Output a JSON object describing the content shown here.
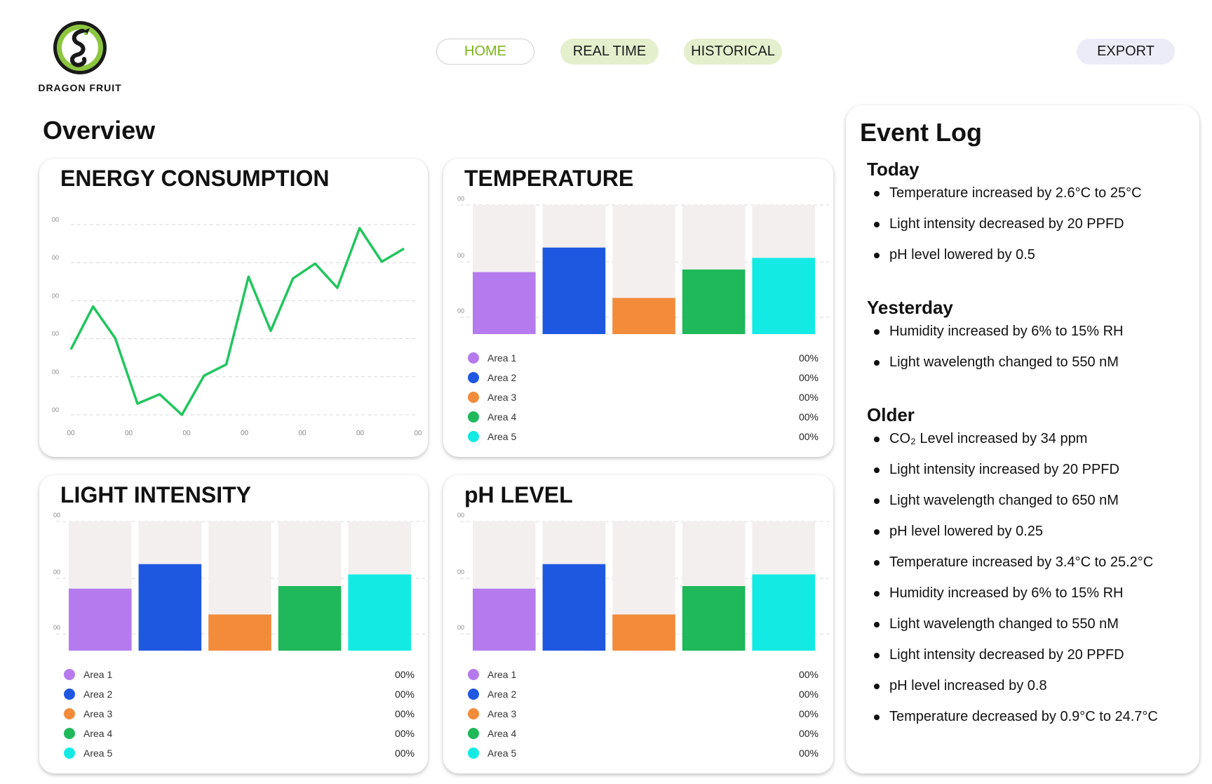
{
  "app": {
    "logo_text": "DRAGON FRUIT"
  },
  "nav": {
    "home": "HOME",
    "real_time": "REAL TIME",
    "historical": "HISTORICAL",
    "export": "EXPORT"
  },
  "overview": {
    "title": "Overview"
  },
  "colors": {
    "accent_green": "#7cb518",
    "line_green": "#22c55e",
    "area1": "#b57bee",
    "area2": "#1f58e0",
    "area3": "#f28b3a",
    "area4": "#1fb85a",
    "area5": "#13eae3",
    "bar_bg": "#f3efef"
  },
  "cards": {
    "energy": {
      "title": "ENERGY CONSUMPTION"
    },
    "temperature": {
      "title": "TEMPERATURE",
      "legend": [
        {
          "label": "Area 1",
          "value": "00%"
        },
        {
          "label": "Area 2",
          "value": "00%"
        },
        {
          "label": "Area 3",
          "value": "00%"
        },
        {
          "label": "Area 4",
          "value": "00%"
        },
        {
          "label": "Area 5",
          "value": "00%"
        }
      ]
    },
    "light": {
      "title": "LIGHT INTENSITY",
      "legend": [
        {
          "label": "Area 1",
          "value": "00%"
        },
        {
          "label": "Area 2",
          "value": "00%"
        },
        {
          "label": "Area 3",
          "value": "00%"
        },
        {
          "label": "Area 4",
          "value": "00%"
        },
        {
          "label": "Area 5",
          "value": "00%"
        }
      ]
    },
    "ph": {
      "title": "pH LEVEL",
      "legend": [
        {
          "label": "Area 1",
          "value": "00%"
        },
        {
          "label": "Area 2",
          "value": "00%"
        },
        {
          "label": "Area 3",
          "value": "00%"
        },
        {
          "label": "Area 4",
          "value": "00%"
        },
        {
          "label": "Area 5",
          "value": "00%"
        }
      ]
    }
  },
  "chart_data": [
    {
      "id": "energy",
      "type": "line",
      "title": "ENERGY CONSUMPTION",
      "y_tick_labels": [
        "00",
        "00",
        "00",
        "00",
        "00",
        "00"
      ],
      "x_tick_labels": [
        "00",
        "00",
        "00",
        "00",
        "00",
        "00",
        "00"
      ],
      "ylim": [
        0,
        100
      ],
      "values": [
        35,
        58,
        41,
        6,
        11,
        0,
        21,
        27,
        74,
        45,
        73,
        81,
        68,
        100,
        82,
        89
      ],
      "grid": true
    },
    {
      "id": "temperature",
      "type": "bar",
      "title": "TEMPERATURE",
      "categories": [
        "Area 1",
        "Area 2",
        "Area 3",
        "Area 4",
        "Area 5"
      ],
      "values": [
        48,
        67,
        28,
        50,
        59
      ],
      "ylim": [
        0,
        100
      ],
      "y_tick_labels": [
        "00",
        "00",
        "00"
      ],
      "colors": [
        "#b57bee",
        "#1f58e0",
        "#f28b3a",
        "#1fb85a",
        "#13eae3"
      ]
    },
    {
      "id": "light",
      "type": "bar",
      "title": "LIGHT INTENSITY",
      "categories": [
        "Area 1",
        "Area 2",
        "Area 3",
        "Area 4",
        "Area 5"
      ],
      "values": [
        48,
        67,
        28,
        50,
        59
      ],
      "ylim": [
        0,
        100
      ],
      "y_tick_labels": [
        "00",
        "00",
        "00"
      ],
      "colors": [
        "#b57bee",
        "#1f58e0",
        "#f28b3a",
        "#1fb85a",
        "#13eae3"
      ]
    },
    {
      "id": "ph",
      "type": "bar",
      "title": "pH LEVEL",
      "categories": [
        "Area 1",
        "Area 2",
        "Area 3",
        "Area 4",
        "Area 5"
      ],
      "values": [
        48,
        67,
        28,
        50,
        59
      ],
      "ylim": [
        0,
        100
      ],
      "y_tick_labels": [
        "00",
        "00",
        "00"
      ],
      "colors": [
        "#b57bee",
        "#1f58e0",
        "#f28b3a",
        "#1fb85a",
        "#13eae3"
      ]
    }
  ],
  "event_log": {
    "title": "Event Log",
    "sections": [
      {
        "title": "Today",
        "items": [
          "Temperature increased by 2.6°C to 25°C",
          "Light intensity decreased by 20 PPFD",
          "pH level lowered by 0.5"
        ]
      },
      {
        "title": "Yesterday",
        "items": [
          "Humidity increased by 6% to 15% RH",
          "Light wavelength changed to 550 nM"
        ]
      },
      {
        "title": "Older",
        "items": [
          "CO₂ Level increased by 34 ppm",
          "Light intensity increased by 20 PPFD",
          "Light wavelength changed to 650 nM",
          "pH level lowered by 0.25",
          "Temperature increased by 3.4°C to 25.2°C",
          "Humidity increased by 6% to 15% RH",
          "Light wavelength changed to 550 nM",
          "Light intensity decreased by 20 PPFD",
          "pH level increased by 0.8",
          "Temperature decreased by 0.9°C to 24.7°C"
        ]
      }
    ]
  }
}
